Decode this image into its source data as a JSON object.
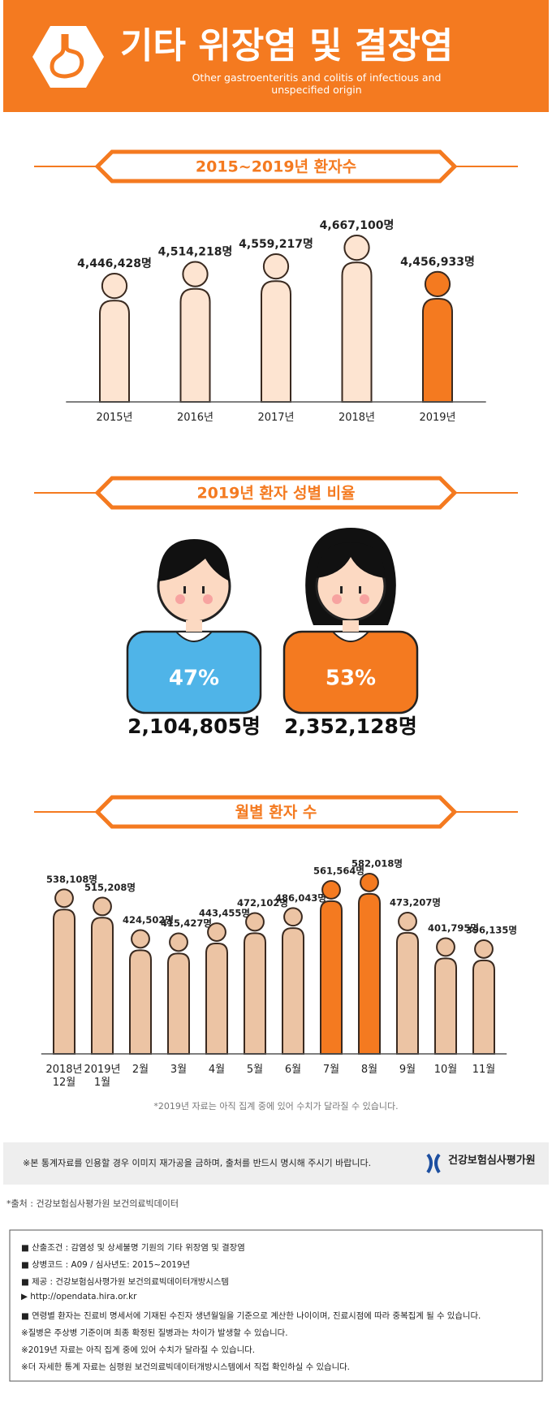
{
  "header": {
    "title": "기타 위장염 및 결장염",
    "subtitle": "Other gastroenteritis and colitis of infectious and unspecified origin"
  },
  "chart_data": [
    {
      "type": "figure-bar",
      "title": "2015~2019년 환자수",
      "categories": [
        "2015년",
        "2016년",
        "2017년",
        "2018년",
        "2019년"
      ],
      "values": [
        4446428,
        4514218,
        4559217,
        4667100,
        4456933
      ],
      "value_labels": [
        "4,446,428명",
        "4,514,218명",
        "4,559,217명",
        "4,667,100명",
        "4,456,933명"
      ],
      "colors": [
        "#fde4d1",
        "#fde4d1",
        "#fde4d1",
        "#fde4d1",
        "#f47a20"
      ]
    },
    {
      "type": "gender",
      "title": "2019년 환자 성별 비율",
      "categories": [
        null,
        null
      ],
      "series": [
        {
          "values": [
            47,
            53
          ],
          "value_labels": [
            "47%",
            "53%"
          ]
        },
        {
          "values": [
            2104805,
            2352128
          ],
          "value_labels": [
            "2,104,805명",
            "2,352,128명"
          ]
        }
      ],
      "colors": [
        "#4fb4e8",
        "#f47a20"
      ]
    },
    {
      "type": "figure-bar",
      "title": "월별 환자 수",
      "categories": [
        "2018년\n12월",
        "2019년\n1월",
        "2월",
        "3월",
        "4월",
        "5월",
        "6월",
        "7월",
        "8월",
        "9월",
        "10월",
        "11월"
      ],
      "values": [
        538108,
        515208,
        424502,
        415427,
        443455,
        472102,
        486043,
        561564,
        582018,
        473207,
        401795,
        396135
      ],
      "value_labels": [
        "538,108명",
        "515,208명",
        "424,502명",
        "415,427명",
        "443,455명",
        "472,102명",
        "486,043명",
        "561,564명",
        "582,018명",
        "473,207명",
        "401,795명",
        "396,135명"
      ],
      "colors": [
        "#ecc4a4",
        "#ecc4a4",
        "#ecc4a4",
        "#ecc4a4",
        "#ecc4a4",
        "#ecc4a4",
        "#ecc4a4",
        "#f47a20",
        "#f47a20",
        "#ecc4a4",
        "#ecc4a4",
        "#ecc4a4"
      ],
      "note": "*2019년 자료는 아직 집계 중에 있어 수치가 달라질 수 있습니다."
    }
  ],
  "footer": {
    "notice": "※본 통계자료를 인용할 경우 이미지 재가공을 금하며, 출처를 반드시 명시해 주시기 바랍니다.",
    "organization": "건강보험심사평가원",
    "source": "*출처 : 건강보험심사평가원 보건의료빅데이터",
    "info": [
      "■ 산출조건 : 감염성 및 상세불명 기원의 기타 위장염 및 결장염",
      "■ 상병코드 : A09 / 심사년도: 2015~2019년",
      "■ 제공 : 건강보험심사평가원 보건의료빅데이터개방시스템",
      "▶ http://opendata.hira.or.kr",
      "■ 연령별 환자는 진료비 명세서에 기재된 수진자 생년월일을 기준으로 계산한 나이이며, 진료시점에 따라 중복집계 될 수 있습니다.",
      "※질병은 주상병 기준이며 최종 확정된 질병과는 차이가 발생할 수 있습니다.",
      "※2019년 자료는 아직 집계 중에 있어 수치가 달라질 수 있습니다.",
      "※더 자세한 통계 자료는 심평원 보건의료빅데이터개방시스템에서 직접 확인하실 수 있습니다."
    ]
  }
}
